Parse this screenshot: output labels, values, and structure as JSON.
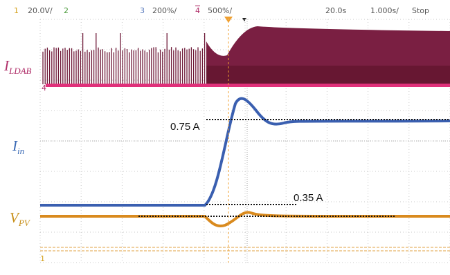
{
  "header": {
    "ch1": "1",
    "ch1_scale": "20.0V/",
    "ch2": "2",
    "ch3": "3",
    "ch3_scale": "200%/",
    "ch4": "4",
    "ch4_scale": "500%/",
    "delay": "20.0s",
    "timebase": "1.000s/",
    "status": "Stop"
  },
  "traces": [
    {
      "main": "I",
      "sub": "LDAB"
    },
    {
      "main": "I",
      "sub": "in"
    },
    {
      "main": "V",
      "sub": "PV"
    }
  ],
  "markers": {
    "ch4": "4",
    "ch1": "1"
  },
  "annotations": {
    "upper": "0.75 A",
    "lower": "0.35 A"
  }
}
